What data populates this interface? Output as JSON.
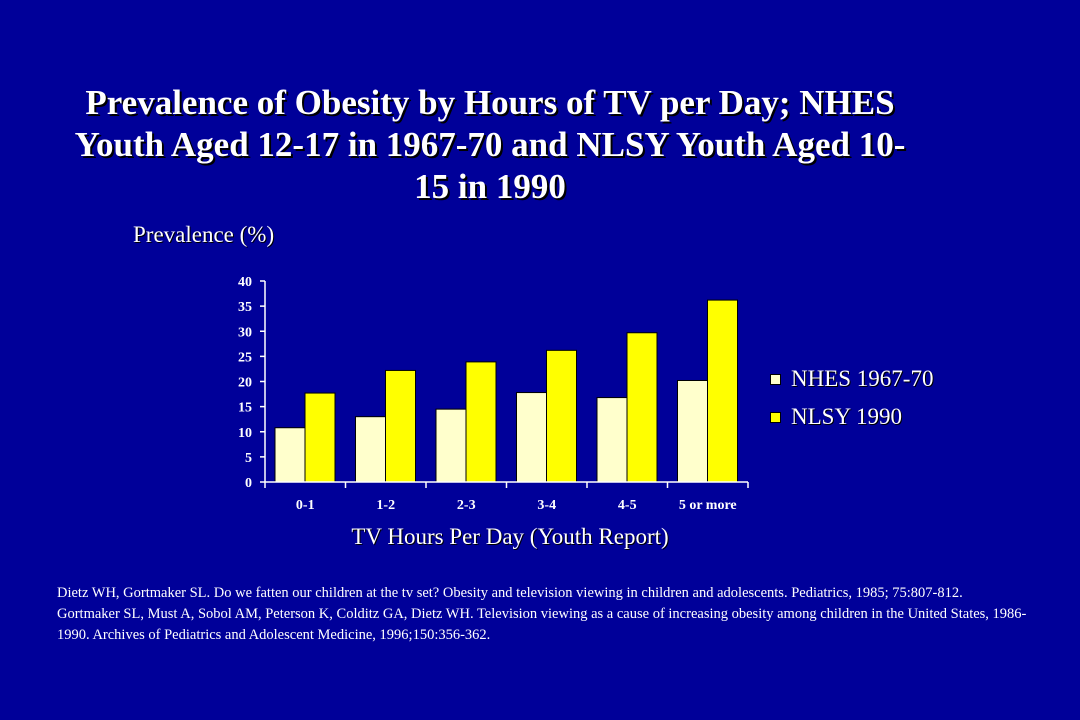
{
  "chart_data": {
    "type": "bar",
    "title": "Prevalence of Obesity by Hours of TV per Day; NHES Youth Aged 12-17 in 1967-70 and NLSY Youth Aged 10-15 in 1990",
    "ylabel": "Prevalence (%)",
    "xlabel": "TV Hours Per Day (Youth Report)",
    "categories": [
      "0-1",
      "1-2",
      "2-3",
      "3-4",
      "4-5",
      "5 or more"
    ],
    "series": [
      {
        "name": "NHES 1967-70",
        "values": [
          10.8,
          13.0,
          14.5,
          17.8,
          16.8,
          20.2
        ],
        "color": "#FFFFCC"
      },
      {
        "name": "NLSY 1990",
        "values": [
          17.7,
          22.2,
          23.9,
          26.2,
          29.7,
          36.2
        ],
        "color": "#FFFF00"
      }
    ],
    "ylim": [
      0,
      40
    ],
    "yticks": [
      "0",
      "5",
      "10",
      "15",
      "20",
      "25",
      "30",
      "35",
      "40"
    ],
    "grid": false,
    "legend_position": "right"
  },
  "references": [
    "Dietz WH, Gortmaker SL.  Do we fatten our children at the tv set?  Obesity and television viewing in children  and adolescents. Pediatrics, 1985; 75:807-812.",
    "Gortmaker SL, Must A, Sobol AM, Peterson K, Colditz GA, Dietz WH. Television viewing as a cause of  increasing obesity among children in the United States, 1986-1990. Archives of Pediatrics and Adolescent  Medicine, 1996;150:356-362."
  ]
}
